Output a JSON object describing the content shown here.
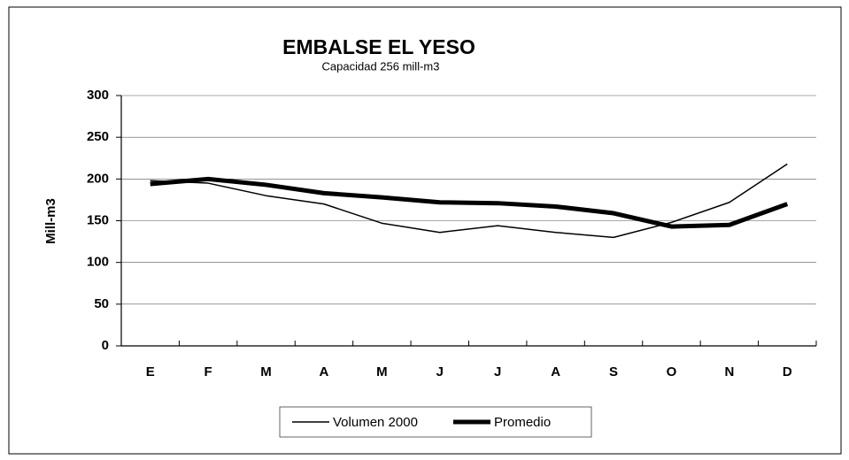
{
  "chart_data": {
    "type": "line",
    "title": "EMBALSE EL YESO",
    "subtitle": "Capacidad 256 mill-m3",
    "y_label": "Mill-m3",
    "categories": [
      "E",
      "F",
      "M",
      "A",
      "M",
      "J",
      "J",
      "A",
      "S",
      "O",
      "N",
      "D"
    ],
    "series": [
      {
        "name": "Volumen 2000",
        "color": "#000000",
        "width": 1.5,
        "values": [
          198,
          195,
          180,
          170,
          147,
          136,
          144,
          136,
          130,
          148,
          172,
          218
        ]
      },
      {
        "name": "Promedio",
        "color": "#000000",
        "width": 5,
        "values": [
          194,
          200,
          193,
          183,
          178,
          172,
          171,
          167,
          159,
          143,
          145,
          170
        ]
      }
    ],
    "ylim": [
      0,
      300
    ],
    "yticks": [
      0,
      50,
      100,
      150,
      200,
      250,
      300
    ],
    "grid": true,
    "legend": "bottom"
  }
}
